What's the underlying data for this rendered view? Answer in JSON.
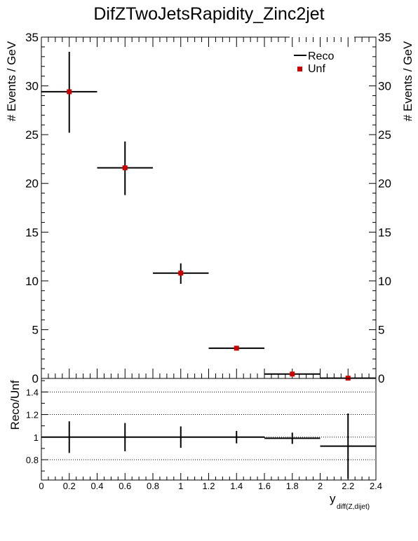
{
  "chart_data": [
    {
      "type": "scatter",
      "title": "DifZTwoJetsRapidity_Zinc2jet",
      "ylabel": "# Events / GeV",
      "xlim": [
        0,
        2.4
      ],
      "ylim": [
        0,
        35
      ],
      "yticks": [
        "0",
        "5",
        "10",
        "15",
        "20",
        "25",
        "30",
        "35"
      ],
      "legend_position": "top-right",
      "series": [
        {
          "name": "Reco",
          "color": "#000000",
          "style": "errorbars",
          "points": [
            {
              "x": 0.2,
              "xerr": 0.2,
              "y": 29.4,
              "yerr_low": 4.2,
              "yerr_high": 4.1
            },
            {
              "x": 0.6,
              "xerr": 0.2,
              "y": 21.6,
              "yerr_low": 2.8,
              "yerr_high": 2.7
            },
            {
              "x": 1.0,
              "xerr": 0.2,
              "y": 10.8,
              "yerr_low": 1.1,
              "yerr_high": 1.0
            },
            {
              "x": 1.4,
              "xerr": 0.2,
              "y": 3.1,
              "yerr_low": 0.2,
              "yerr_high": 0.2
            },
            {
              "x": 1.8,
              "xerr": 0.2,
              "y": 0.45,
              "yerr_low": 0.05,
              "yerr_high": 0.05
            },
            {
              "x": 2.2,
              "xerr": 0.2,
              "y": 0.03,
              "yerr_low": 0.02,
              "yerr_high": 0.02
            }
          ]
        },
        {
          "name": "Unf",
          "color": "#cc0000",
          "style": "markers",
          "points": [
            {
              "x": 0.2,
              "y": 29.4
            },
            {
              "x": 0.6,
              "y": 21.6
            },
            {
              "x": 1.0,
              "y": 10.8
            },
            {
              "x": 1.4,
              "y": 3.1
            },
            {
              "x": 1.8,
              "y": 0.45
            },
            {
              "x": 2.2,
              "y": 0.03
            }
          ]
        }
      ]
    },
    {
      "type": "scatter",
      "ylabel": "Reco/Unf",
      "xlabel_main": "y",
      "xlabel_sub": "diff(Z,dijet)",
      "xlim": [
        0,
        2.4
      ],
      "ylim": [
        0.62,
        1.52
      ],
      "yticks": [
        "0.8",
        "1",
        "1.2",
        "1.4"
      ],
      "xticks": [
        "0",
        "0.2",
        "0.4",
        "0.6",
        "0.8",
        "1",
        "1.2",
        "1.4",
        "1.6",
        "1.8",
        "2",
        "2.2",
        "2.4"
      ],
      "grid": "horizontal dotted",
      "series": [
        {
          "style": "errorbars",
          "color": "#000000",
          "points": [
            {
              "x": 0.2,
              "xerr": 0.2,
              "y": 1.0,
              "yerr": 0.14
            },
            {
              "x": 0.6,
              "xerr": 0.2,
              "y": 1.0,
              "yerr": 0.125
            },
            {
              "x": 1.0,
              "xerr": 0.2,
              "y": 1.0,
              "yerr": 0.095
            },
            {
              "x": 1.4,
              "xerr": 0.2,
              "y": 1.0,
              "yerr": 0.055
            },
            {
              "x": 1.8,
              "xerr": 0.2,
              "y": 0.99,
              "yerr": 0.05
            },
            {
              "x": 2.2,
              "xerr": 0.2,
              "y": 0.92,
              "yerr": 0.29
            }
          ]
        }
      ]
    }
  ]
}
